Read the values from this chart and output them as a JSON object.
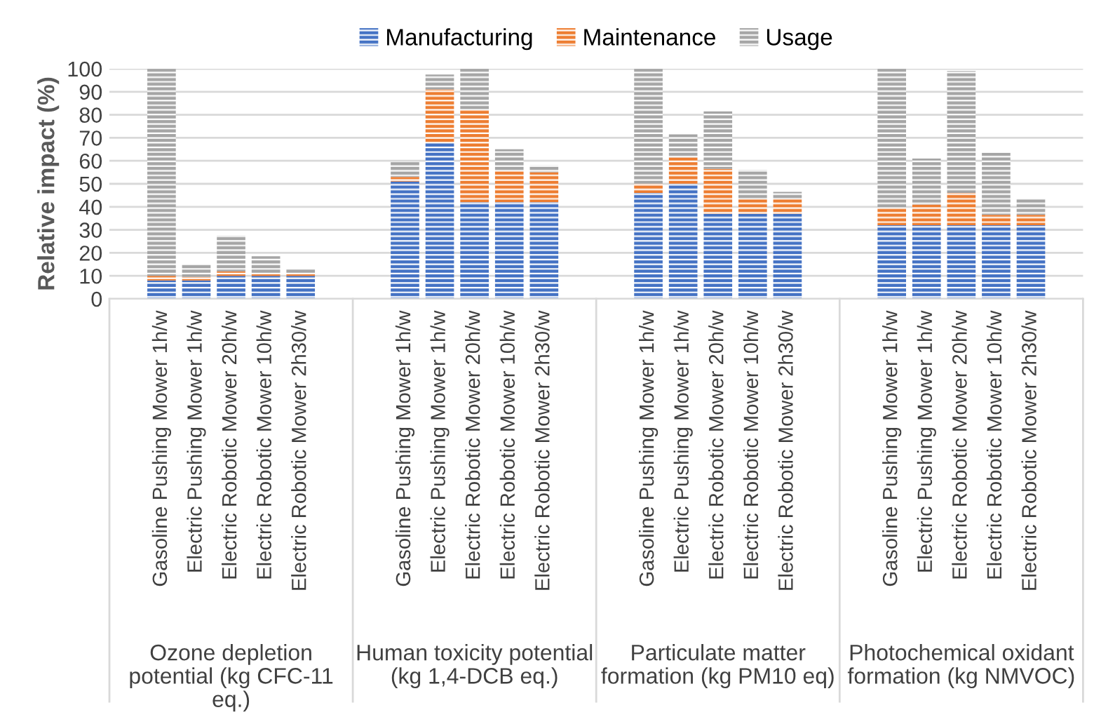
{
  "chart_data": {
    "type": "bar",
    "stacked": true,
    "ylabel": "Relative impact (%)",
    "categories": [
      null,
      "Gasoline Pushing Mower 1h/w",
      "Electric Pushing Mower 1h/w",
      "Electric Robotic Mower 20h/w",
      "Electric Robotic Mower 10h/w",
      "Electric Robotic Mower 2h30/w",
      null,
      null,
      "Gasoline Pushing Mower 1h/w",
      "Electric Pushing Mower 1h/w",
      "Electric Robotic Mower 20h/w",
      "Electric Robotic Mower 10h/w",
      "Electric Robotic Mower 2h30/w",
      null,
      null,
      "Gasoline Pushing Mower 1h/w",
      "Electric Pushing Mower 1h/w",
      "Electric Robotic Mower 20h/w",
      "Electric Robotic Mower 10h/w",
      "Electric Robotic Mower 2h30/w",
      null,
      null,
      "Gasoline Pushing Mower 1h/w",
      "Electric Pushing Mower 1h/w",
      "Electric Robotic Mower 20h/w",
      "Electric Robotic Mower 10h/w",
      "Electric Robotic Mower 2h30/w",
      null
    ],
    "series": [
      {
        "name": "Manufacturing",
        "color": "#4472c4",
        "values": [
          null,
          8,
          8,
          10,
          10,
          10,
          null,
          null,
          51,
          68,
          42,
          42,
          42,
          null,
          null,
          46,
          50,
          37,
          37,
          37,
          null,
          null,
          32,
          32,
          32,
          32,
          32,
          null
        ]
      },
      {
        "name": "Maintenance",
        "color": "#ed7d31",
        "values": [
          null,
          2,
          1.5,
          2,
          1,
          1,
          null,
          null,
          2,
          23,
          40,
          13.5,
          13,
          null,
          null,
          4,
          11.5,
          19.5,
          6.5,
          6.5,
          null,
          null,
          7.5,
          9,
          14,
          4.5,
          4.5,
          null
        ]
      },
      {
        "name": "Usage",
        "color": "#a5a5a5",
        "values": [
          null,
          90,
          5.5,
          15.5,
          7.5,
          2,
          null,
          null,
          6.5,
          6.5,
          18,
          9.5,
          3,
          null,
          null,
          50,
          10,
          25,
          12.5,
          3,
          null,
          null,
          60.5,
          20,
          53,
          27,
          7,
          null
        ]
      }
    ],
    "ylim": [
      0,
      100
    ],
    "yticks": [
      0,
      10,
      20,
      30,
      40,
      50,
      60,
      70,
      80,
      90,
      100
    ],
    "grid": "y",
    "legend": "top",
    "annotations": [
      "Ozone depletion\npotential (kg CFC-11\neq.)",
      "Human toxicity potential\n(kg 1,4-DCB eq.)",
      "Particulate matter\nformation (kg PM10 eq)",
      "Photochemical oxidant\nformation (kg NMVOC)"
    ]
  }
}
